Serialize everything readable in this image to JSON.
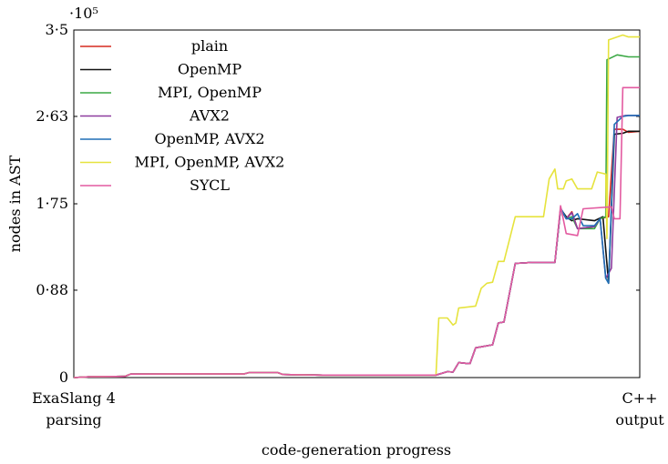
{
  "chart_data": {
    "type": "line",
    "exponent_label": "·10⁵",
    "xlabel": "code-generation progress",
    "ylabel": "nodes in AST",
    "x_ticks": [
      {
        "x": 0,
        "lines": [
          "ExaSlang 4",
          "parsing"
        ]
      },
      {
        "x": 1,
        "lines": [
          "C++",
          "output"
        ]
      }
    ],
    "y_ticks": [
      {
        "value": 0,
        "label": "0"
      },
      {
        "value": 88000,
        "label": "0·88"
      },
      {
        "value": 175000,
        "label": "1·75"
      },
      {
        "value": 263000,
        "label": "2·63"
      },
      {
        "value": 350000,
        "label": "3·5"
      }
    ],
    "xlim": [
      0,
      1
    ],
    "ylim": [
      0,
      350000
    ],
    "grid": false,
    "legend_position": "top-left",
    "series": [
      {
        "name": "plain",
        "color": "#d62a1f",
        "points": [
          [
            0,
            0
          ],
          [
            0.03,
            800
          ],
          [
            0.09,
            1200
          ],
          [
            0.1,
            3500
          ],
          [
            0.2,
            3800
          ],
          [
            0.3,
            3600
          ],
          [
            0.31,
            5000
          ],
          [
            0.36,
            5000
          ],
          [
            0.37,
            3000
          ],
          [
            0.44,
            2500
          ],
          [
            0.64,
            2500
          ],
          [
            0.66,
            6000
          ],
          [
            0.67,
            5500
          ],
          [
            0.68,
            15000
          ],
          [
            0.7,
            14000
          ],
          [
            0.71,
            30000
          ],
          [
            0.72,
            31000
          ],
          [
            0.74,
            33000
          ],
          [
            0.75,
            55000
          ],
          [
            0.76,
            56000
          ],
          [
            0.78,
            115000
          ],
          [
            0.81,
            116000
          ],
          [
            0.85,
            116000
          ],
          [
            0.86,
            170000
          ],
          [
            0.87,
            160000
          ],
          [
            0.88,
            167000
          ],
          [
            0.89,
            150000
          ],
          [
            0.92,
            152000
          ],
          [
            0.93,
            160000
          ],
          [
            0.945,
            162000
          ],
          [
            0.955,
            250000
          ],
          [
            0.97,
            250000
          ],
          [
            0.98,
            247000
          ],
          [
            1,
            248000
          ]
        ]
      },
      {
        "name": "OpenMP",
        "color": "#111111",
        "points": [
          [
            0,
            0
          ],
          [
            0.03,
            800
          ],
          [
            0.09,
            1200
          ],
          [
            0.1,
            3500
          ],
          [
            0.2,
            3800
          ],
          [
            0.3,
            3600
          ],
          [
            0.31,
            5000
          ],
          [
            0.36,
            5000
          ],
          [
            0.37,
            3000
          ],
          [
            0.44,
            2500
          ],
          [
            0.64,
            2500
          ],
          [
            0.66,
            6000
          ],
          [
            0.67,
            5500
          ],
          [
            0.68,
            15000
          ],
          [
            0.7,
            14000
          ],
          [
            0.71,
            30000
          ],
          [
            0.72,
            31000
          ],
          [
            0.74,
            33000
          ],
          [
            0.75,
            55000
          ],
          [
            0.76,
            56000
          ],
          [
            0.78,
            115000
          ],
          [
            0.81,
            116000
          ],
          [
            0.85,
            116000
          ],
          [
            0.86,
            170000
          ],
          [
            0.87,
            162000
          ],
          [
            0.88,
            158000
          ],
          [
            0.89,
            160000
          ],
          [
            0.92,
            158000
          ],
          [
            0.935,
            162000
          ],
          [
            0.945,
            95000
          ],
          [
            0.955,
            245000
          ],
          [
            0.97,
            246000
          ],
          [
            0.98,
            248000
          ],
          [
            1,
            248000
          ]
        ]
      },
      {
        "name": "MPI, OpenMP",
        "color": "#3aa844",
        "points": [
          [
            0,
            0
          ],
          [
            0.03,
            800
          ],
          [
            0.09,
            1200
          ],
          [
            0.1,
            3500
          ],
          [
            0.2,
            3800
          ],
          [
            0.3,
            3600
          ],
          [
            0.31,
            5000
          ],
          [
            0.36,
            5000
          ],
          [
            0.37,
            3000
          ],
          [
            0.44,
            2500
          ],
          [
            0.64,
            2500
          ],
          [
            0.66,
            6000
          ],
          [
            0.67,
            5500
          ],
          [
            0.68,
            15000
          ],
          [
            0.7,
            14000
          ],
          [
            0.71,
            30000
          ],
          [
            0.72,
            31000
          ],
          [
            0.74,
            33000
          ],
          [
            0.75,
            55000
          ],
          [
            0.76,
            56000
          ],
          [
            0.78,
            115000
          ],
          [
            0.81,
            116000
          ],
          [
            0.85,
            116000
          ],
          [
            0.86,
            170000
          ],
          [
            0.87,
            160000
          ],
          [
            0.88,
            162000
          ],
          [
            0.89,
            150000
          ],
          [
            0.92,
            150000
          ],
          [
            0.93,
            160000
          ],
          [
            0.94,
            162000
          ],
          [
            0.942,
            320000
          ],
          [
            0.96,
            325000
          ],
          [
            0.98,
            323000
          ],
          [
            1,
            323000
          ]
        ]
      },
      {
        "name": "AVX2",
        "color": "#8e3c9e",
        "points": [
          [
            0,
            0
          ],
          [
            0.03,
            800
          ],
          [
            0.09,
            1200
          ],
          [
            0.1,
            3500
          ],
          [
            0.2,
            3800
          ],
          [
            0.3,
            3600
          ],
          [
            0.31,
            5000
          ],
          [
            0.36,
            5000
          ],
          [
            0.37,
            3000
          ],
          [
            0.44,
            2500
          ],
          [
            0.64,
            2500
          ],
          [
            0.66,
            6000
          ],
          [
            0.67,
            5500
          ],
          [
            0.68,
            15000
          ],
          [
            0.7,
            14000
          ],
          [
            0.71,
            30000
          ],
          [
            0.72,
            31000
          ],
          [
            0.74,
            33000
          ],
          [
            0.75,
            55000
          ],
          [
            0.76,
            56000
          ],
          [
            0.78,
            115000
          ],
          [
            0.81,
            116000
          ],
          [
            0.85,
            116000
          ],
          [
            0.86,
            170000
          ],
          [
            0.87,
            160000
          ],
          [
            0.88,
            166000
          ],
          [
            0.89,
            150000
          ],
          [
            0.92,
            152000
          ],
          [
            0.93,
            160000
          ],
          [
            0.94,
            100000
          ],
          [
            0.95,
            110000
          ],
          [
            0.96,
            262000
          ],
          [
            0.975,
            264000
          ],
          [
            1,
            264000
          ]
        ]
      },
      {
        "name": "OpenMP, AVX2",
        "color": "#1f6fb5",
        "points": [
          [
            0,
            0
          ],
          [
            0.03,
            800
          ],
          [
            0.09,
            1200
          ],
          [
            0.1,
            3500
          ],
          [
            0.2,
            3800
          ],
          [
            0.3,
            3600
          ],
          [
            0.31,
            5000
          ],
          [
            0.36,
            5000
          ],
          [
            0.37,
            3000
          ],
          [
            0.44,
            2500
          ],
          [
            0.64,
            2500
          ],
          [
            0.66,
            6000
          ],
          [
            0.67,
            5500
          ],
          [
            0.68,
            15000
          ],
          [
            0.7,
            14000
          ],
          [
            0.71,
            30000
          ],
          [
            0.72,
            31000
          ],
          [
            0.74,
            33000
          ],
          [
            0.75,
            55000
          ],
          [
            0.76,
            56000
          ],
          [
            0.78,
            115000
          ],
          [
            0.81,
            116000
          ],
          [
            0.85,
            116000
          ],
          [
            0.86,
            171000
          ],
          [
            0.87,
            160000
          ],
          [
            0.88,
            160000
          ],
          [
            0.89,
            165000
          ],
          [
            0.9,
            153000
          ],
          [
            0.92,
            153000
          ],
          [
            0.93,
            160000
          ],
          [
            0.94,
            100000
          ],
          [
            0.945,
            95000
          ],
          [
            0.955,
            255000
          ],
          [
            0.97,
            263000
          ],
          [
            0.98,
            264000
          ],
          [
            1,
            264000
          ]
        ]
      },
      {
        "name": "MPI, OpenMP, AVX2",
        "color": "#e6e33d",
        "points": [
          [
            0,
            0
          ],
          [
            0.03,
            800
          ],
          [
            0.09,
            1200
          ],
          [
            0.1,
            3500
          ],
          [
            0.2,
            3800
          ],
          [
            0.3,
            3600
          ],
          [
            0.31,
            5000
          ],
          [
            0.36,
            5000
          ],
          [
            0.37,
            3000
          ],
          [
            0.44,
            2500
          ],
          [
            0.64,
            2500
          ],
          [
            0.645,
            60000
          ],
          [
            0.66,
            60000
          ],
          [
            0.67,
            53000
          ],
          [
            0.675,
            55000
          ],
          [
            0.68,
            70000
          ],
          [
            0.71,
            72000
          ],
          [
            0.72,
            90000
          ],
          [
            0.73,
            95000
          ],
          [
            0.74,
            96000
          ],
          [
            0.75,
            117000
          ],
          [
            0.76,
            117000
          ],
          [
            0.78,
            162000
          ],
          [
            0.83,
            162000
          ],
          [
            0.84,
            200000
          ],
          [
            0.85,
            210000
          ],
          [
            0.855,
            190000
          ],
          [
            0.865,
            190000
          ],
          [
            0.87,
            198000
          ],
          [
            0.88,
            200000
          ],
          [
            0.89,
            190000
          ],
          [
            0.915,
            190000
          ],
          [
            0.925,
            207000
          ],
          [
            0.94,
            205000
          ],
          [
            0.942,
            140000
          ],
          [
            0.945,
            340000
          ],
          [
            0.97,
            345000
          ],
          [
            0.98,
            343000
          ],
          [
            1,
            343000
          ]
        ]
      },
      {
        "name": "SYCL",
        "color": "#e35aa0",
        "points": [
          [
            0,
            0
          ],
          [
            0.03,
            800
          ],
          [
            0.09,
            1200
          ],
          [
            0.1,
            3500
          ],
          [
            0.2,
            3800
          ],
          [
            0.3,
            3600
          ],
          [
            0.31,
            5000
          ],
          [
            0.36,
            5000
          ],
          [
            0.37,
            3000
          ],
          [
            0.44,
            2500
          ],
          [
            0.64,
            2500
          ],
          [
            0.66,
            6000
          ],
          [
            0.67,
            5500
          ],
          [
            0.68,
            15000
          ],
          [
            0.7,
            14000
          ],
          [
            0.71,
            30000
          ],
          [
            0.72,
            31000
          ],
          [
            0.74,
            33000
          ],
          [
            0.75,
            55000
          ],
          [
            0.76,
            56000
          ],
          [
            0.78,
            115000
          ],
          [
            0.81,
            116000
          ],
          [
            0.85,
            116000
          ],
          [
            0.86,
            173000
          ],
          [
            0.87,
            145000
          ],
          [
            0.89,
            143000
          ],
          [
            0.9,
            170000
          ],
          [
            0.95,
            172000
          ],
          [
            0.955,
            160000
          ],
          [
            0.96,
            160000
          ],
          [
            0.965,
            160000
          ],
          [
            0.97,
            292000
          ],
          [
            1,
            292000
          ]
        ]
      }
    ]
  }
}
